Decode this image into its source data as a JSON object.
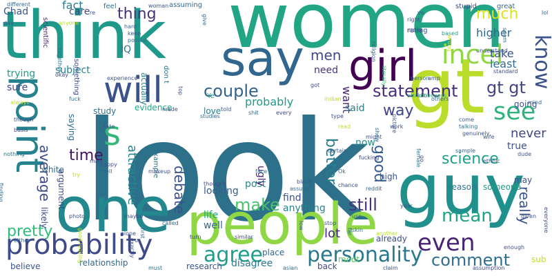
{
  "words": [
    {
      "text": "look",
      "size": 200,
      "color": "#2c7189"
    },
    {
      "text": "women",
      "size": 110,
      "color": "#21a585"
    },
    {
      "text": "gt",
      "size": 110,
      "color": "#b9dd2a"
    },
    {
      "text": "think",
      "size": 95,
      "color": "#1f9a8a"
    },
    {
      "text": "guy",
      "size": 100,
      "color": "#21908c"
    },
    {
      "text": "one",
      "size": 90,
      "color": "#23888e"
    },
    {
      "text": "people",
      "size": 82,
      "color": "#8fd744"
    },
    {
      "text": "say",
      "size": 70,
      "color": "#31678e"
    },
    {
      "text": "girl",
      "size": 62,
      "color": "#440154"
    },
    {
      "text": "will",
      "size": 52,
      "color": "#3b528b"
    },
    {
      "text": "point",
      "size": 55,
      "color": "#26828e"
    },
    {
      "text": "probability",
      "size": 40,
      "color": "#3e4a89"
    },
    {
      "text": "s",
      "size": 48,
      "color": "#35b779"
    },
    {
      "text": "incel",
      "size": 38,
      "color": "#90d743"
    },
    {
      "text": "know",
      "size": 30,
      "color": "#3a538b"
    },
    {
      "text": "see",
      "size": 35,
      "color": "#2db27d"
    },
    {
      "text": "even",
      "size": 34,
      "color": "#482475"
    },
    {
      "text": "personality",
      "size": 30,
      "color": "#2a788e"
    },
    {
      "text": "agree",
      "size": 30,
      "color": "#1f9e89"
    },
    {
      "text": "mean",
      "size": 26,
      "color": "#20a386"
    },
    {
      "text": "comment",
      "size": 24,
      "color": "#2d708e"
    },
    {
      "text": "still",
      "size": 24,
      "color": "#46327e"
    },
    {
      "text": "make",
      "size": 24,
      "color": "#4ac16d"
    },
    {
      "text": "couple",
      "size": 24,
      "color": "#33638d"
    },
    {
      "text": "statement",
      "size": 24,
      "color": "#472d7b"
    },
    {
      "text": "gt gt",
      "size": 24,
      "color": "#414487"
    },
    {
      "text": "much",
      "size": 22,
      "color": "#dde318"
    },
    {
      "text": "thing",
      "size": 22,
      "color": "#46337e"
    },
    {
      "text": "men",
      "size": 20,
      "color": "#3f4889"
    },
    {
      "text": "science",
      "size": 22,
      "color": "#1fa088"
    },
    {
      "text": "pretty",
      "size": 22,
      "color": "#2ebd79"
    },
    {
      "text": "good",
      "size": 22,
      "color": "#365c8d"
    },
    {
      "text": "better",
      "size": 22,
      "color": "#287d8e"
    },
    {
      "text": "way",
      "size": 22,
      "color": "#404688"
    },
    {
      "text": "time",
      "size": 22,
      "color": "#471164"
    },
    {
      "text": "average",
      "size": 20,
      "color": "#3e4a89"
    },
    {
      "text": "debate",
      "size": 20,
      "color": "#3b518b"
    },
    {
      "text": "attractive",
      "size": 18,
      "color": "#24868e"
    },
    {
      "text": "really",
      "size": 20,
      "color": "#3a548c"
    },
    {
      "text": "never",
      "size": 18,
      "color": "#3f4788"
    },
    {
      "text": "lot",
      "size": 18,
      "color": "#482979"
    },
    {
      "text": "probably",
      "size": 16,
      "color": "#1e9b8a"
    },
    {
      "text": "higher",
      "size": 16,
      "color": "#31678e"
    },
    {
      "text": "take",
      "size": 16,
      "color": "#3b518b"
    },
    {
      "text": "care",
      "size": 14,
      "color": "#3e4c8a"
    },
    {
      "text": "fact",
      "size": 16,
      "color": "#287c8e"
    },
    {
      "text": "Chad",
      "size": 14,
      "color": "#39568c"
    },
    {
      "text": "IQ",
      "size": 14,
      "color": "#2c728e"
    },
    {
      "text": "subject",
      "size": 14,
      "color": "#25838e"
    },
    {
      "text": "trying",
      "size": 14,
      "color": "#1e9c89"
    },
    {
      "text": "sure",
      "size": 14,
      "color": "#3f4788"
    },
    {
      "text": "least",
      "size": 16,
      "color": "#2f6c8e"
    },
    {
      "text": "need",
      "size": 14,
      "color": "#46337e"
    },
    {
      "text": "want",
      "size": 16,
      "color": "#482576"
    },
    {
      "text": "said",
      "size": 14,
      "color": "#277f8e"
    },
    {
      "text": "true",
      "size": 14,
      "color": "#3c508b"
    },
    {
      "text": "reason",
      "size": 12,
      "color": "#2b758e"
    },
    {
      "text": "someone",
      "size": 12,
      "color": "#1e9d89"
    },
    {
      "text": "now",
      "size": 14,
      "color": "#21918c"
    },
    {
      "text": "post",
      "size": 14,
      "color": "#25858e"
    },
    {
      "text": "find",
      "size": 14,
      "color": "#3b528b"
    },
    {
      "text": "anything",
      "size": 14,
      "color": "#26828e"
    },
    {
      "text": "well",
      "size": 14,
      "color": "#31678e"
    },
    {
      "text": "life",
      "size": 14,
      "color": "#21a685"
    },
    {
      "text": "looking",
      "size": 14,
      "color": "#365d8d"
    },
    {
      "text": "love",
      "size": 12,
      "color": "#287d8e"
    },
    {
      "text": "white",
      "size": 12,
      "color": "#2f6b8e"
    },
    {
      "text": "argument",
      "size": 12,
      "color": "#3e4989"
    },
    {
      "text": "saying",
      "size": 12,
      "color": "#31688e"
    },
    {
      "text": "evidence",
      "size": 12,
      "color": "#22a884"
    },
    {
      "text": "ugly",
      "size": 14,
      "color": "#482071"
    },
    {
      "text": "likely",
      "size": 12,
      "color": "#3e4a89"
    },
    {
      "text": "believe",
      "size": 12,
      "color": "#3b528b"
    },
    {
      "text": "relationship",
      "size": 12,
      "color": "#31678e"
    },
    {
      "text": "disagree",
      "size": 14,
      "color": "#2a788e"
    },
    {
      "text": "research",
      "size": 12,
      "color": "#3b528b"
    },
    {
      "text": "place",
      "size": 12,
      "color": "#33638d"
    },
    {
      "text": "back",
      "size": 12,
      "color": "#3f4889"
    },
    {
      "text": "moot",
      "size": 12,
      "color": "#5cc863"
    },
    {
      "text": "already",
      "size": 12,
      "color": "#3e4a89"
    },
    {
      "text": "high",
      "size": 12,
      "color": "#3b528b"
    },
    {
      "text": "actually",
      "size": 12,
      "color": "#24868e"
    },
    {
      "text": "study",
      "size": 12,
      "color": "#2c718e"
    },
    {
      "text": "going",
      "size": 12,
      "color": "#3a548c"
    },
    {
      "text": "sub",
      "size": 12,
      "color": "#c8e020"
    },
    {
      "text": "may",
      "size": 12,
      "color": "#3b518b"
    },
    {
      "text": "don t",
      "size": 10,
      "color": "#2a788e"
    },
    {
      "text": "scientific",
      "size": 10,
      "color": "#482475"
    },
    {
      "text": "rating",
      "size": 10,
      "color": "#3b528b"
    },
    {
      "text": "stupid",
      "size": 10,
      "color": "#3e4989"
    },
    {
      "text": "great",
      "size": 10,
      "color": "#31688e"
    },
    {
      "text": "feel",
      "size": 10,
      "color": "#2c718e"
    },
    {
      "text": "assuming",
      "size": 10,
      "color": "#31678e"
    },
    {
      "text": "Ye",
      "size": 10,
      "color": "#1f9e89"
    },
    {
      "text": "example",
      "size": 10,
      "color": "#2b748e"
    },
    {
      "text": "something",
      "size": 10,
      "color": "#3e4a89"
    },
    {
      "text": "different",
      "size": 8,
      "color": "#31678e"
    },
    {
      "text": "religion",
      "size": 8,
      "color": "#33638d"
    },
    {
      "text": "literally",
      "size": 8,
      "color": "#35b779"
    },
    {
      "text": "picture",
      "size": 8,
      "color": "#3b518b"
    },
    {
      "text": "person",
      "size": 8,
      "color": "#31678e"
    },
    {
      "text": "idiot",
      "size": 8,
      "color": "#3e4989"
    },
    {
      "text": "understand",
      "size": 8,
      "color": "#3b528b"
    },
    {
      "text": "standard",
      "size": 8,
      "color": "#3e4a89"
    },
    {
      "text": "based",
      "size": 8,
      "color": "#1f9a8a"
    },
    {
      "text": "wrong",
      "size": 8,
      "color": "#d8e219"
    },
    {
      "text": "seem",
      "size": 8,
      "color": "#2d708e"
    },
    {
      "text": "lol",
      "size": 8,
      "color": "#31678e"
    },
    {
      "text": "day",
      "size": 8,
      "color": "#3b528b"
    },
    {
      "text": "right",
      "size": 8,
      "color": "#3b528b"
    },
    {
      "text": "many",
      "size": 8,
      "color": "#3e4a89"
    },
    {
      "text": "hard",
      "size": 8,
      "color": "#31678e"
    },
    {
      "text": "keep",
      "size": 8,
      "color": "#3b528b"
    },
    {
      "text": "posted",
      "size": 8,
      "color": "#2c718e"
    },
    {
      "text": "okay",
      "size": 8,
      "color": "#3e4989"
    },
    {
      "text": "together",
      "size": 8,
      "color": "#2a788e"
    },
    {
      "text": "top",
      "size": 8,
      "color": "#3b528b"
    },
    {
      "text": "got",
      "size": 8,
      "color": "#3e4a89"
    },
    {
      "text": "indian",
      "size": 8,
      "color": "#b5de2b"
    },
    {
      "text": "amp",
      "size": 8,
      "color": "#3b518b"
    },
    {
      "text": "mind",
      "size": 8,
      "color": "#31678e"
    },
    {
      "text": "experience",
      "size": 8,
      "color": "#3b528b"
    },
    {
      "text": "attractiveness",
      "size": 8,
      "color": "#35b779"
    },
    {
      "text": "others",
      "size": 8,
      "color": "#31678e"
    },
    {
      "text": "type",
      "size": 8,
      "color": "#3e4989"
    },
    {
      "text": "read",
      "size": 8,
      "color": "#b5de2b"
    },
    {
      "text": "come",
      "size": 8,
      "color": "#3b528b"
    },
    {
      "text": "talking",
      "size": 8,
      "color": "#2c718e"
    },
    {
      "text": "wife",
      "size": 8,
      "color": "#3b528b"
    },
    {
      "text": "fuck",
      "size": 8,
      "color": "#2a788e"
    },
    {
      "text": "told",
      "size": 8,
      "color": "#3b528b"
    },
    {
      "text": "shit",
      "size": 8,
      "color": "#31678e"
    },
    {
      "text": "every",
      "size": 8,
      "color": "#3e4a89"
    },
    {
      "text": "made",
      "size": 8,
      "color": "#3b528b"
    },
    {
      "text": "studies",
      "size": 8,
      "color": "#31678e"
    },
    {
      "text": "always",
      "size": 8,
      "color": "#b5de2b"
    },
    {
      "text": "though",
      "size": 8,
      "color": "#3b528b"
    },
    {
      "text": "basis",
      "size": 8,
      "color": "#3e4a89"
    },
    {
      "text": "rate",
      "size": 8,
      "color": "#3b528b"
    },
    {
      "text": "nothing",
      "size": 8,
      "color": "#2c718e"
    },
    {
      "text": "happy",
      "size": 8,
      "color": "#3b528b"
    },
    {
      "text": "tell",
      "size": 8,
      "color": "#31678e"
    },
    {
      "text": "man",
      "size": 8,
      "color": "#3e4989"
    },
    {
      "text": "try",
      "size": 8,
      "color": "#b5de2b"
    },
    {
      "text": "work",
      "size": 8,
      "color": "#3b528b"
    },
    {
      "text": "might",
      "size": 8,
      "color": "#3b528b"
    },
    {
      "text": "show",
      "size": 8,
      "color": "#31678e"
    },
    {
      "text": "certain",
      "size": 8,
      "color": "#3b528b"
    },
    {
      "text": "fucking",
      "size": 8,
      "color": "#3e4a89"
    },
    {
      "text": "Ok",
      "size": 8,
      "color": "#31678e"
    },
    {
      "text": "female",
      "size": 8,
      "color": "#2c718e"
    },
    {
      "text": "genuinely",
      "size": 8,
      "color": "#3b528b"
    },
    {
      "text": "ethnic",
      "size": 8,
      "color": "#3b528b"
    },
    {
      "text": "sample",
      "size": 8,
      "color": "#31678e"
    },
    {
      "text": "go",
      "size": 8,
      "color": "#3e4989"
    },
    {
      "text": "dude",
      "size": 8,
      "color": "#3b528b"
    },
    {
      "text": "finding",
      "size": 8,
      "color": "#31678e"
    },
    {
      "text": "photo",
      "size": 8,
      "color": "#3b528b"
    },
    {
      "text": "maybe",
      "size": 8,
      "color": "#3e4a89"
    },
    {
      "text": "first",
      "size": 8,
      "color": "#31678e"
    },
    {
      "text": "makeup",
      "size": 8,
      "color": "#3b528b"
    },
    {
      "text": "face",
      "size": 8,
      "color": "#2c718e"
    },
    {
      "text": "black",
      "size": 8,
      "color": "#3b528b"
    },
    {
      "text": "assume",
      "size": 8,
      "color": "#31678e"
    },
    {
      "text": "thought",
      "size": 8,
      "color": "#3e4989"
    },
    {
      "text": "chance",
      "size": 8,
      "color": "#3b528b"
    },
    {
      "text": "reddit",
      "size": 8,
      "color": "#31678e"
    },
    {
      "text": "given",
      "size": 8,
      "color": "#3b528b"
    },
    {
      "text": "turn",
      "size": 8,
      "color": "#3e4a89"
    },
    {
      "text": "use",
      "size": 8,
      "color": "#31678e"
    },
    {
      "text": "stop",
      "size": 8,
      "color": "#3b528b"
    },
    {
      "text": "skin",
      "size": 8,
      "color": "#2c718e"
    },
    {
      "text": "far",
      "size": 8,
      "color": "#31678e"
    },
    {
      "text": "another",
      "size": 8,
      "color": "#b5de2b"
    },
    {
      "text": "enough",
      "size": 8,
      "color": "#3b528b"
    },
    {
      "text": "everyone",
      "size": 8,
      "color": "#3e4989"
    },
    {
      "text": "either",
      "size": 8,
      "color": "#31678e"
    },
    {
      "text": "alone",
      "size": 8,
      "color": "#3b528b"
    },
    {
      "text": "exactly",
      "size": 8,
      "color": "#3b528b"
    },
    {
      "text": "called",
      "size": 8,
      "color": "#31678e"
    },
    {
      "text": "similar",
      "size": 8,
      "color": "#3e4a89"
    },
    {
      "text": "low",
      "size": 8,
      "color": "#3b528b"
    },
    {
      "text": "must",
      "size": 8,
      "color": "#2c718e"
    },
    {
      "text": "asian",
      "size": 8,
      "color": "#31678e"
    },
    {
      "text": "claim",
      "size": 8,
      "color": "#3b528b"
    },
    {
      "text": "assumption",
      "size": 8,
      "color": "#3e4989"
    },
    {
      "text": "anyone",
      "size": 8,
      "color": "#b5de2b"
    },
    {
      "text": "woman",
      "size": 8,
      "color": "#3b528b"
    },
    {
      "text": "good looking",
      "size": 8,
      "color": "#b5de2b"
    },
    {
      "text": "give",
      "size": 8,
      "color": "#31678e"
    },
    {
      "text": "re",
      "size": 8,
      "color": "#3b528b"
    },
    {
      "text": "ve",
      "size": 8,
      "color": "#31678e"
    },
    {
      "text": "u",
      "size": 8,
      "color": "#3e4a89"
    },
    {
      "text": "year",
      "size": 8,
      "color": "#3b528b"
    }
  ]
}
